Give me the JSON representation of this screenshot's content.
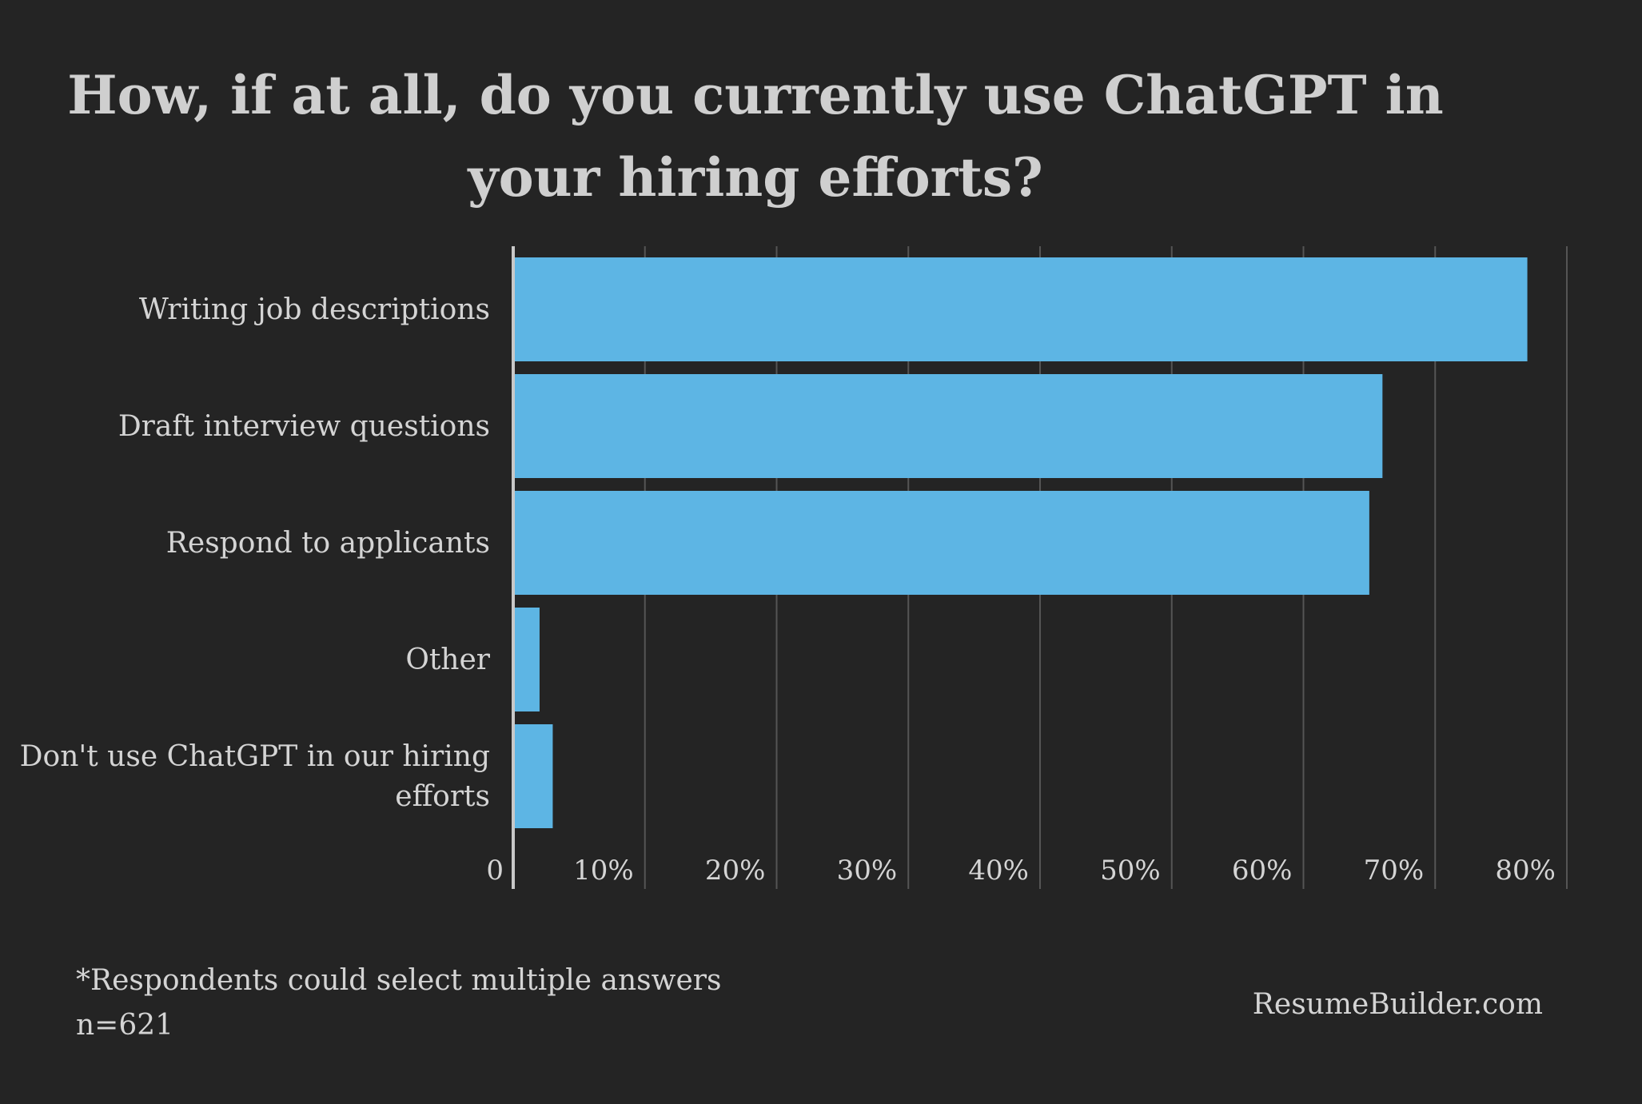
{
  "colors": {
    "background": "#242424",
    "bar": "#5db5e4",
    "grid": "#555555",
    "axis": "#c8c8c8",
    "text": "#d4d4d4"
  },
  "chart_data": {
    "type": "bar",
    "orientation": "horizontal",
    "title_lines": [
      "How, if at all, do you currently use ChatGPT in",
      "your hiring efforts?"
    ],
    "categories": [
      [
        "Writing job descriptions"
      ],
      [
        "Draft interview questions"
      ],
      [
        "Respond to applicants"
      ],
      [
        "Other"
      ],
      [
        "Don't use ChatGPT in our hiring",
        "efforts"
      ]
    ],
    "values": [
      77,
      66,
      65,
      2,
      3
    ],
    "xlim": [
      0,
      80
    ],
    "ticks": [
      {
        "value": 0,
        "label": "0"
      },
      {
        "value": 10,
        "label": "10%"
      },
      {
        "value": 20,
        "label": "20%"
      },
      {
        "value": 30,
        "label": "30%"
      },
      {
        "value": 40,
        "label": "40%"
      },
      {
        "value": 50,
        "label": "50%"
      },
      {
        "value": 60,
        "label": "60%"
      },
      {
        "value": 70,
        "label": "70%"
      },
      {
        "value": 80,
        "label": "80%"
      }
    ],
    "grid": true,
    "xlabel": "",
    "ylabel": ""
  },
  "footnote": {
    "line1": "*Respondents could select multiple answers",
    "line2": "n=621"
  },
  "source": "ResumeBuilder.com"
}
